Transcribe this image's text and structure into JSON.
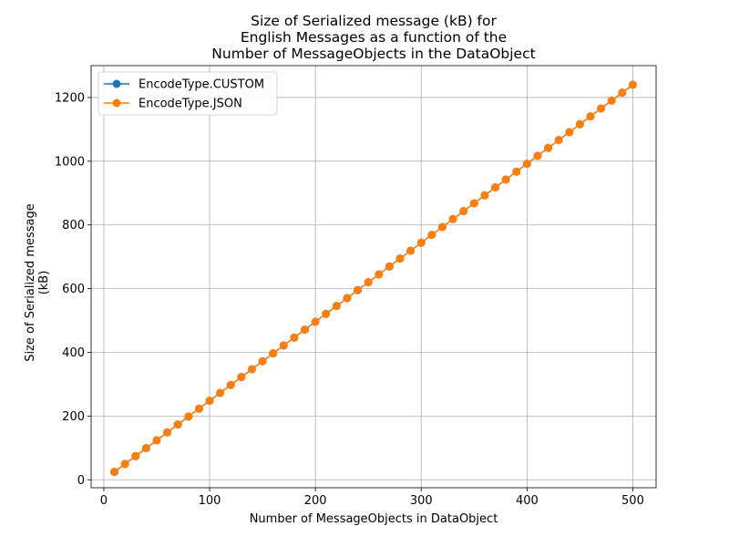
{
  "chart_data": {
    "type": "line",
    "title_lines": [
      "Size of Serialized message (kB) for",
      "English Messages as a function of the",
      "Number of MessageObjects in the DataObject"
    ],
    "xlabel": "Number of MessageObjects in DataObject",
    "ylabel": "Size of Serialized message (kB)",
    "xlim": [
      -12,
      522
    ],
    "ylim": [
      -25,
      1300
    ],
    "x_ticks": [
      0,
      100,
      200,
      300,
      400,
      500
    ],
    "y_ticks": [
      0,
      200,
      400,
      600,
      800,
      1000,
      1200
    ],
    "grid": true,
    "legend_position": "top-left",
    "x": [
      10,
      20,
      30,
      40,
      50,
      60,
      70,
      80,
      90,
      100,
      110,
      120,
      130,
      140,
      150,
      160,
      170,
      180,
      190,
      200,
      210,
      220,
      230,
      240,
      250,
      260,
      270,
      280,
      290,
      300,
      310,
      320,
      330,
      340,
      350,
      360,
      370,
      380,
      390,
      400,
      410,
      420,
      430,
      440,
      450,
      460,
      470,
      480,
      490,
      500
    ],
    "series": [
      {
        "name": "EncodeType.CUSTOM",
        "color": "#1f77b4",
        "marker": "circle",
        "values": [
          24.8,
          49.6,
          74.4,
          99.2,
          124.0,
          148.8,
          173.6,
          198.4,
          223.2,
          248.0,
          272.8,
          297.6,
          322.4,
          347.2,
          372.0,
          396.8,
          421.6,
          446.4,
          471.2,
          496.0,
          520.8,
          545.6,
          570.4,
          595.2,
          620.0,
          644.8,
          669.6,
          694.4,
          719.2,
          744.0,
          768.8,
          793.6,
          818.4,
          843.2,
          868.0,
          892.8,
          917.6,
          942.4,
          967.2,
          992.0,
          1016.8,
          1041.6,
          1066.4,
          1091.2,
          1116.0,
          1140.8,
          1165.6,
          1190.4,
          1215.2,
          1240.0
        ]
      },
      {
        "name": "EncodeType.JSON",
        "color": "#ff7f0e",
        "marker": "circle",
        "values": [
          24.8,
          49.6,
          74.4,
          99.2,
          124.0,
          148.8,
          173.6,
          198.4,
          223.2,
          248.0,
          272.8,
          297.6,
          322.4,
          347.2,
          372.0,
          396.8,
          421.6,
          446.4,
          471.2,
          496.0,
          520.8,
          545.6,
          570.4,
          595.2,
          620.0,
          644.8,
          669.6,
          694.4,
          719.2,
          744.0,
          768.8,
          793.6,
          818.4,
          843.2,
          868.0,
          892.8,
          917.6,
          942.4,
          967.2,
          992.0,
          1016.8,
          1041.6,
          1066.4,
          1091.2,
          1116.0,
          1140.8,
          1165.6,
          1190.4,
          1215.2,
          1240.0
        ]
      }
    ]
  }
}
